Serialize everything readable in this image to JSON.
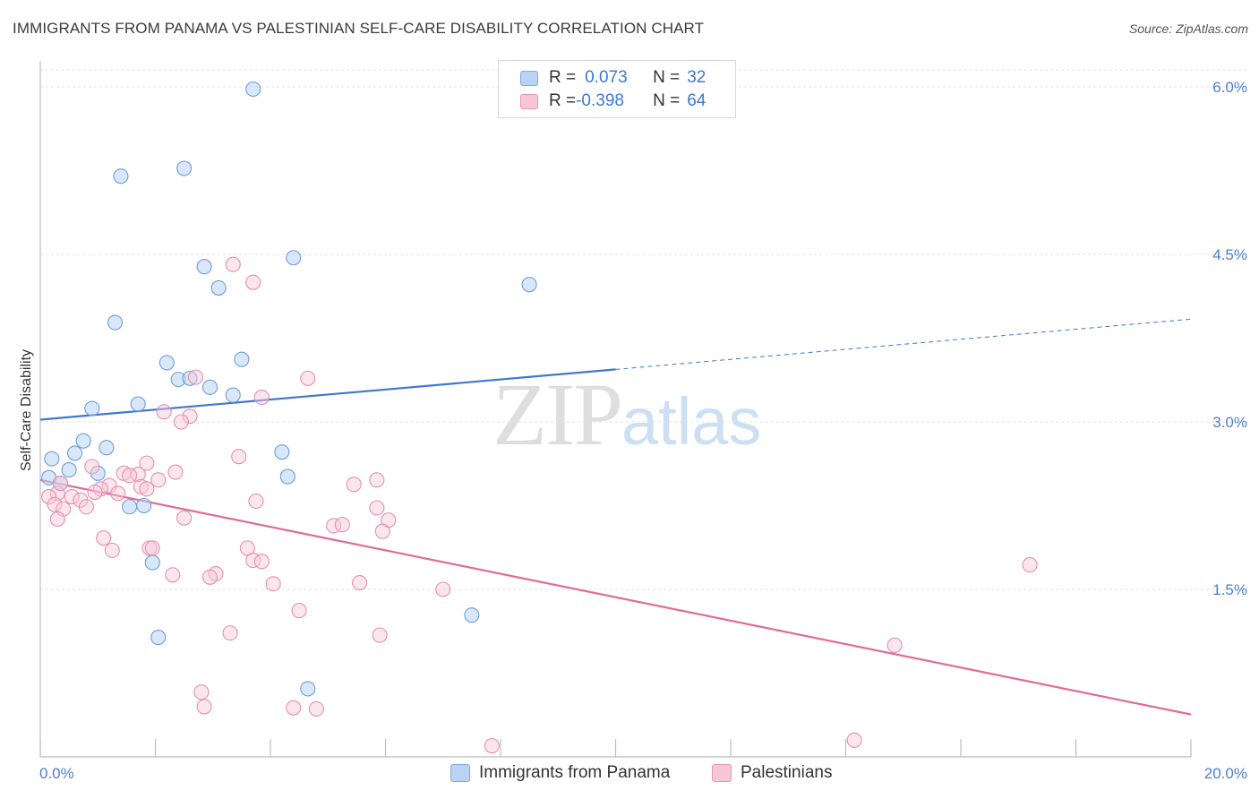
{
  "title": "IMMIGRANTS FROM PANAMA VS PALESTINIAN SELF-CARE DISABILITY CORRELATION CHART",
  "source": "Source: ZipAtlas.com",
  "watermark": {
    "zip": "ZIP",
    "atlas": "atlas"
  },
  "legend": {
    "rows": [
      {
        "r_label": "R =",
        "r_value": "0.073",
        "n_label": "N =",
        "n_value": "32"
      },
      {
        "r_label": "R =",
        "r_value": "-0.398",
        "n_label": "N =",
        "n_value": "64"
      }
    ]
  },
  "bottom_legend": [
    "Immigrants from Panama",
    "Palestinians"
  ],
  "colors": {
    "blue": "#3f78d0",
    "blue_fill": "#b9d3f5",
    "pink": "#e36a98",
    "pink_fill": "#f8c7d6",
    "tick": "#4a7fd0"
  },
  "chart_data": {
    "type": "scatter",
    "title": "IMMIGRANTS FROM PANAMA VS PALESTINIAN SELF-CARE DISABILITY CORRELATION CHART",
    "xlabel": "",
    "ylabel": "Self-Care Disability",
    "xlim": [
      0,
      20
    ],
    "ylim": [
      0,
      6.3
    ],
    "x_tick_labels": [
      "0.0%",
      "20.0%"
    ],
    "y_ticks": [
      1.5,
      3.0,
      4.5,
      6.0
    ],
    "y_tick_labels": [
      "1.5%",
      "3.0%",
      "4.5%",
      "6.0%"
    ],
    "grid": true,
    "legend_position": "top-center",
    "series": [
      {
        "name": "Immigrants from Panama",
        "color": "#3f78d0",
        "trend": {
          "x": [
            0,
            10
          ],
          "y": [
            3.02,
            3.47
          ],
          "dashed_to": [
            20,
            3.92
          ]
        },
        "points": [
          [
            3.7,
            5.98
          ],
          [
            2.5,
            5.27
          ],
          [
            1.4,
            5.2
          ],
          [
            2.85,
            4.39
          ],
          [
            4.4,
            4.47
          ],
          [
            3.1,
            4.2
          ],
          [
            8.5,
            4.23
          ],
          [
            1.3,
            3.89
          ],
          [
            2.2,
            3.53
          ],
          [
            3.5,
            3.56
          ],
          [
            2.4,
            3.38
          ],
          [
            2.6,
            3.39
          ],
          [
            2.95,
            3.31
          ],
          [
            3.35,
            3.24
          ],
          [
            1.7,
            3.16
          ],
          [
            0.9,
            3.12
          ],
          [
            0.75,
            2.83
          ],
          [
            1.15,
            2.77
          ],
          [
            0.6,
            2.72
          ],
          [
            4.2,
            2.73
          ],
          [
            0.2,
            2.67
          ],
          [
            0.5,
            2.57
          ],
          [
            1.0,
            2.54
          ],
          [
            4.3,
            2.51
          ],
          [
            0.35,
            2.45
          ],
          [
            1.55,
            2.24
          ],
          [
            1.8,
            2.25
          ],
          [
            1.95,
            1.74
          ],
          [
            7.5,
            1.27
          ],
          [
            2.05,
            1.07
          ],
          [
            4.65,
            0.61
          ],
          [
            0.15,
            2.5
          ]
        ]
      },
      {
        "name": "Palestinians",
        "color": "#e36a98",
        "trend": {
          "x": [
            0,
            20
          ],
          "y": [
            2.48,
            0.38
          ]
        },
        "points": [
          [
            3.35,
            4.41
          ],
          [
            3.7,
            4.25
          ],
          [
            4.65,
            3.39
          ],
          [
            2.7,
            3.4
          ],
          [
            3.85,
            3.22
          ],
          [
            2.15,
            3.09
          ],
          [
            2.6,
            3.05
          ],
          [
            2.45,
            3.0
          ],
          [
            3.45,
            2.69
          ],
          [
            1.85,
            2.63
          ],
          [
            0.9,
            2.6
          ],
          [
            2.35,
            2.55
          ],
          [
            1.45,
            2.54
          ],
          [
            1.7,
            2.53
          ],
          [
            1.55,
            2.52
          ],
          [
            2.05,
            2.48
          ],
          [
            5.85,
            2.48
          ],
          [
            5.45,
            2.44
          ],
          [
            1.2,
            2.43
          ],
          [
            1.75,
            2.42
          ],
          [
            1.05,
            2.4
          ],
          [
            1.85,
            2.4
          ],
          [
            0.95,
            2.37
          ],
          [
            1.35,
            2.36
          ],
          [
            0.3,
            2.36
          ],
          [
            0.15,
            2.33
          ],
          [
            0.55,
            2.33
          ],
          [
            0.7,
            2.3
          ],
          [
            0.25,
            2.26
          ],
          [
            0.8,
            2.24
          ],
          [
            3.75,
            2.29
          ],
          [
            0.4,
            2.22
          ],
          [
            5.85,
            2.23
          ],
          [
            2.5,
            2.14
          ],
          [
            0.3,
            2.13
          ],
          [
            6.05,
            2.12
          ],
          [
            5.1,
            2.07
          ],
          [
            5.25,
            2.08
          ],
          [
            5.95,
            2.02
          ],
          [
            1.1,
            1.96
          ],
          [
            1.9,
            1.87
          ],
          [
            1.25,
            1.85
          ],
          [
            3.6,
            1.87
          ],
          [
            3.7,
            1.76
          ],
          [
            3.85,
            1.75
          ],
          [
            17.2,
            1.72
          ],
          [
            2.3,
            1.63
          ],
          [
            3.05,
            1.64
          ],
          [
            2.95,
            1.61
          ],
          [
            4.05,
            1.55
          ],
          [
            5.55,
            1.56
          ],
          [
            7.0,
            1.5
          ],
          [
            4.5,
            1.31
          ],
          [
            3.3,
            1.11
          ],
          [
            5.9,
            1.09
          ],
          [
            14.85,
            1.0
          ],
          [
            2.8,
            0.58
          ],
          [
            2.85,
            0.45
          ],
          [
            4.4,
            0.44
          ],
          [
            4.8,
            0.43
          ],
          [
            14.15,
            0.15
          ],
          [
            7.85,
            0.1
          ],
          [
            1.95,
            1.87
          ],
          [
            0.35,
            2.45
          ]
        ]
      }
    ]
  }
}
